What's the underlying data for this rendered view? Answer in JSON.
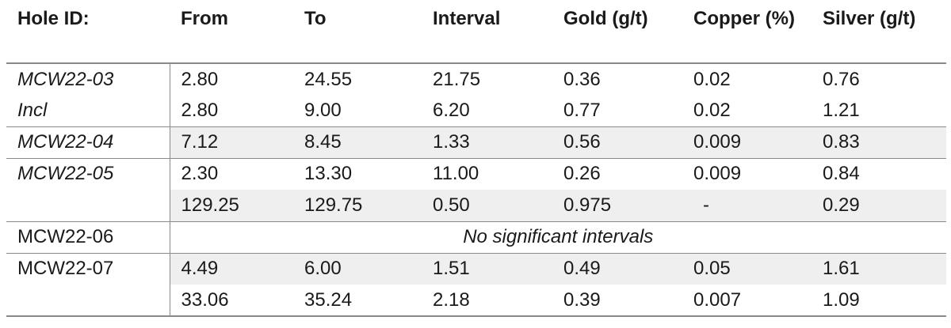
{
  "headers": [
    "Hole ID:",
    "From",
    "To",
    "Interval",
    "Gold (g/t)",
    "Copper (%)",
    "Silver (g/t)"
  ],
  "rows": [
    {
      "hole": "MCW22-03",
      "from": "2.80",
      "to": "24.55",
      "interval": "21.75",
      "gold": "0.36",
      "copper": "0.02",
      "silver": "0.76"
    },
    {
      "hole": "Incl",
      "from": "2.80",
      "to": "9.00",
      "interval": "6.20",
      "gold": "0.77",
      "copper": "0.02",
      "silver": "1.21"
    },
    {
      "hole": "MCW22-04",
      "from": "7.12",
      "to": "8.45",
      "interval": "1.33",
      "gold": "0.56",
      "copper": "0.009",
      "silver": "0.83"
    },
    {
      "hole": "MCW22-05",
      "from": "2.30",
      "to": "13.30",
      "interval": "11.00",
      "gold": "0.26",
      "copper": "0.009",
      "silver": "0.84"
    },
    {
      "hole": "",
      "from": "129.25",
      "to": "129.75",
      "interval": "0.50",
      "gold": "0.975",
      "copper": "-",
      "silver": "0.29"
    },
    {
      "hole": "MCW22-06",
      "note": "No significant intervals"
    },
    {
      "hole": "MCW22-07",
      "from": "4.49",
      "to": "6.00",
      "interval": "1.51",
      "gold": "0.49",
      "copper": "0.05",
      "silver": "1.61"
    },
    {
      "hole": "",
      "from": "33.06",
      "to": "35.24",
      "interval": "2.18",
      "gold": "0.39",
      "copper": "0.007",
      "silver": "1.09"
    }
  ]
}
